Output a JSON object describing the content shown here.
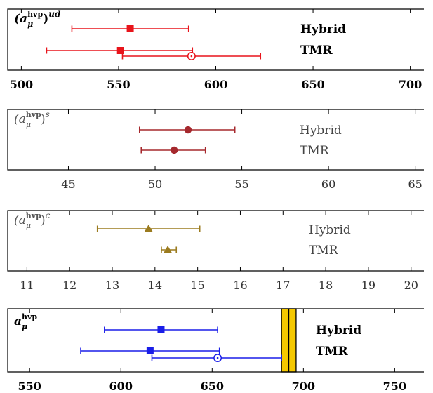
{
  "chart_data": [
    {
      "type": "scatter",
      "title": "(a_μ^hvp)^ud",
      "title_parts": {
        "base": "(a",
        "sub": "μ",
        "sup": "hvp",
        "close": ")",
        "outer_sup": "ud"
      },
      "color": "#e8141b",
      "style": "bold",
      "xlim": [
        493,
        707
      ],
      "ticks": [
        500,
        550,
        600,
        650,
        700
      ],
      "tick_labels": [
        "500",
        "550",
        "600",
        "650",
        "700"
      ],
      "grid": false,
      "categories": [
        "Hybrid",
        "TMR"
      ],
      "series": [
        {
          "name": "Hybrid",
          "marker": "square",
          "value": 556,
          "err_low": 526,
          "err_high": 586
        },
        {
          "name": "TMR",
          "marker": "square",
          "value": 551,
          "err_low": 513,
          "err_high": 588
        },
        {
          "name": "",
          "marker": "open-circle",
          "value": 587.5,
          "err_low": 552,
          "err_high": 623
        }
      ]
    },
    {
      "type": "scatter",
      "title": "(a_μ^hvp)^s",
      "title_parts": {
        "base": "(a",
        "sub": "μ",
        "sup": "hvp",
        "close": ")",
        "outer_sup": "s"
      },
      "color": "#a5282d",
      "style": "plain",
      "xlim": [
        41.5,
        65.5
      ],
      "ticks": [
        45,
        50,
        55,
        60,
        65
      ],
      "tick_labels": [
        "45",
        "50",
        "55",
        "60",
        "65"
      ],
      "grid": false,
      "categories": [
        "Hybrid",
        "TMR"
      ],
      "series": [
        {
          "name": "Hybrid",
          "marker": "circle",
          "value": 51.9,
          "err_low": 49.1,
          "err_high": 54.6
        },
        {
          "name": "TMR",
          "marker": "circle",
          "value": 51.1,
          "err_low": 49.2,
          "err_high": 52.9
        }
      ]
    },
    {
      "type": "scatter",
      "title": "(a_μ^hvp)^c",
      "title_parts": {
        "base": "(a",
        "sub": "μ",
        "sup": "hvp",
        "close": ")",
        "outer_sup": "c"
      },
      "color": "#9b7b1f",
      "style": "plain",
      "xlim": [
        10.55,
        20.3
      ],
      "ticks": [
        11,
        12,
        13,
        14,
        15,
        16,
        17,
        18,
        19,
        20
      ],
      "tick_labels": [
        "11",
        "12",
        "13",
        "14",
        "15",
        "16",
        "17",
        "18",
        "19",
        "20"
      ],
      "grid": false,
      "categories": [
        "Hybrid",
        "TMR"
      ],
      "series": [
        {
          "name": "Hybrid",
          "marker": "triangle",
          "value": 13.85,
          "err_low": 12.65,
          "err_high": 15.05
        },
        {
          "name": "TMR",
          "marker": "triangle",
          "value": 14.3,
          "err_low": 14.15,
          "err_high": 14.5
        }
      ]
    },
    {
      "type": "scatter",
      "title": "a_μ^hvp",
      "title_parts": {
        "base": "a",
        "sub": "μ",
        "sup": "hvp",
        "close": "",
        "outer_sup": ""
      },
      "color": "#1a1ee8",
      "style": "bold",
      "xlim": [
        538,
        766
      ],
      "ticks": [
        550,
        600,
        650,
        700,
        750
      ],
      "tick_labels": [
        "550",
        "600",
        "650",
        "700",
        "750"
      ],
      "grid": false,
      "categories": [
        "Hybrid",
        "TMR"
      ],
      "band": {
        "from": 688,
        "to": 696,
        "fill": "#f5c800"
      },
      "series": [
        {
          "name": "Hybrid",
          "marker": "square",
          "value": 622,
          "err_low": 591,
          "err_high": 653
        },
        {
          "name": "TMR",
          "marker": "square",
          "value": 616,
          "err_low": 578,
          "err_high": 654
        },
        {
          "name": "",
          "marker": "open-circle",
          "value": 653,
          "err_low": 617,
          "err_high": 688
        }
      ]
    }
  ]
}
